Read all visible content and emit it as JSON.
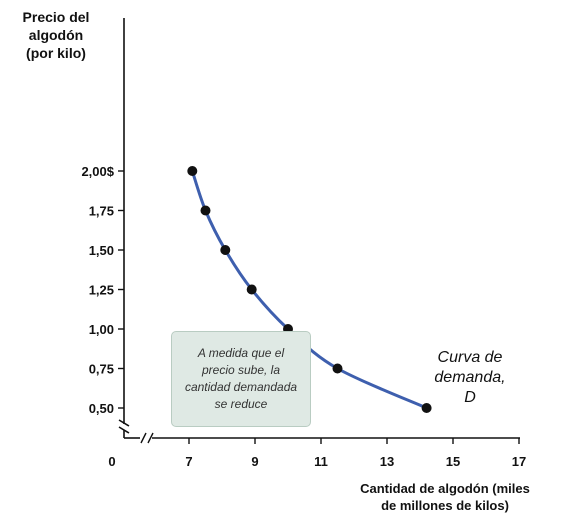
{
  "chart_data": {
    "type": "line",
    "ylabel_lines": [
      "Precio del",
      "algodón",
      "(por kilo)"
    ],
    "xlabel_lines": [
      "Cantidad de algodón (miles",
      "de millones de kilos)"
    ],
    "x": [
      7.1,
      7.5,
      8.1,
      8.9,
      10.0,
      11.5,
      14.2
    ],
    "y": [
      2.0,
      1.75,
      1.5,
      1.25,
      1.0,
      0.75,
      0.5
    ],
    "x_ticks": [
      "7",
      "9",
      "11",
      "13",
      "15",
      "17"
    ],
    "x_tick_values": [
      7,
      9,
      11,
      13,
      15,
      17
    ],
    "x_origin_label": "0",
    "y_ticks": [
      "0,50",
      "0,75",
      "1,00",
      "1,25",
      "1,50",
      "1,75",
      "2,00$"
    ],
    "y_tick_values": [
      0.5,
      0.75,
      1.0,
      1.25,
      1.5,
      1.75,
      2.0
    ],
    "xlim": [
      6,
      17
    ],
    "ylim": [
      0.5,
      2.0
    ],
    "axis_breaks": true,
    "series": [
      {
        "values": [
          2.0,
          1.75,
          1.5,
          1.25,
          1.0,
          0.75,
          0.5
        ],
        "color": "#3e5fae"
      }
    ],
    "annotations": [
      {
        "kind": "note",
        "text": "A medida que el precio sube, la cantidad demandada se reduce"
      },
      {
        "kind": "curve-label",
        "lines": [
          "Curva de",
          "demanda,",
          "D"
        ]
      }
    ],
    "grid": false,
    "legend": "none"
  }
}
